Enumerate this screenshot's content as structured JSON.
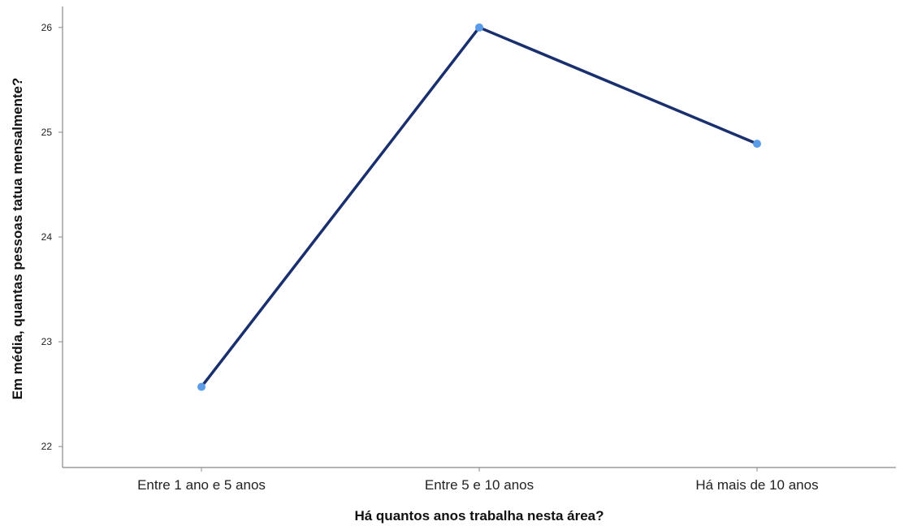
{
  "chart_data": {
    "type": "line",
    "title": "",
    "xlabel": "Há quantos anos trabalha nesta área?",
    "ylabel": "Em média, quantas pessoas tatua mensalmente?",
    "categories": [
      "Entre 1 ano e 5 anos",
      "Entre 5 e 10 anos",
      "Há mais de 10 anos"
    ],
    "series": [
      {
        "values": [
          22.57,
          26.0,
          24.89
        ],
        "line_color": "#1a2f6e",
        "marker_color": "#5b9be8"
      }
    ],
    "yticks": [
      22,
      23,
      24,
      25,
      26
    ],
    "ylim": [
      21.8,
      26.2
    ],
    "grid": false,
    "legend": "none"
  }
}
